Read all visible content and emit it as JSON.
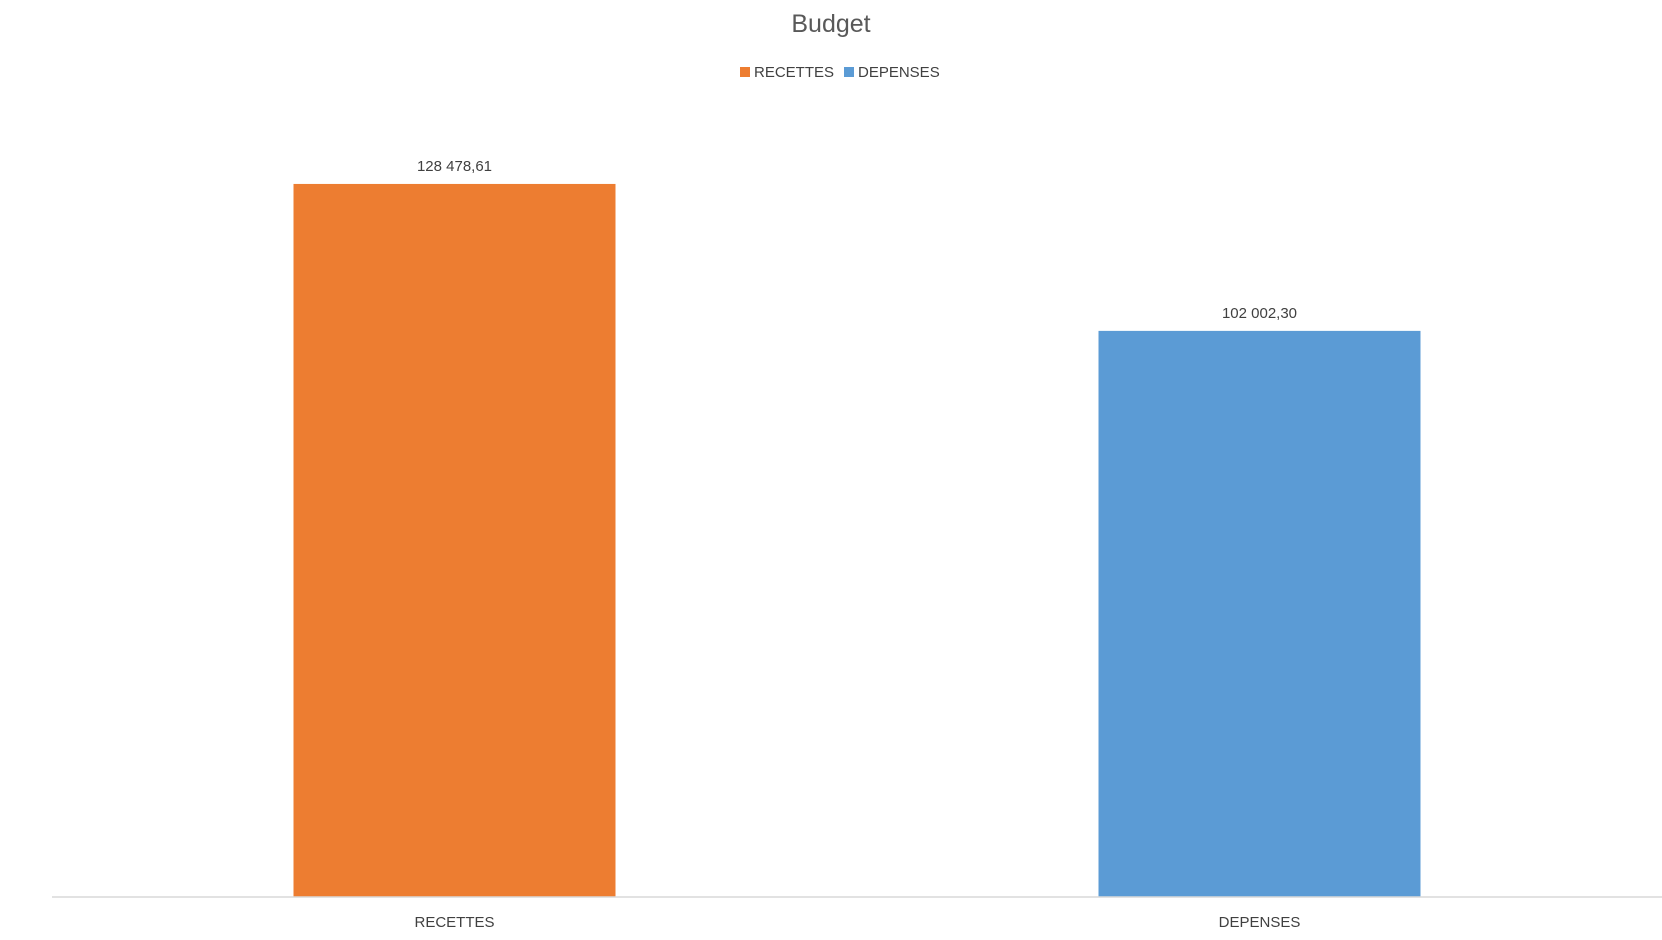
{
  "chart_data": {
    "type": "bar",
    "title": "Budget",
    "categories": [
      "RECETTES",
      "DEPENSES"
    ],
    "values": [
      128478.61,
      102002.3
    ],
    "data_labels": [
      "128 478,61",
      "102 002,30"
    ],
    "colors": [
      "#ED7D31",
      "#5B9BD5"
    ],
    "legend": {
      "placement": "top",
      "entries": [
        {
          "label": "RECETTES",
          "color": "#ED7D31"
        },
        {
          "label": "DEPENSES",
          "color": "#5B9BD5"
        }
      ]
    },
    "xlabel": "",
    "ylabel": "",
    "ylim": [
      0,
      140000
    ],
    "grid": false,
    "y_axis_visible": false
  }
}
